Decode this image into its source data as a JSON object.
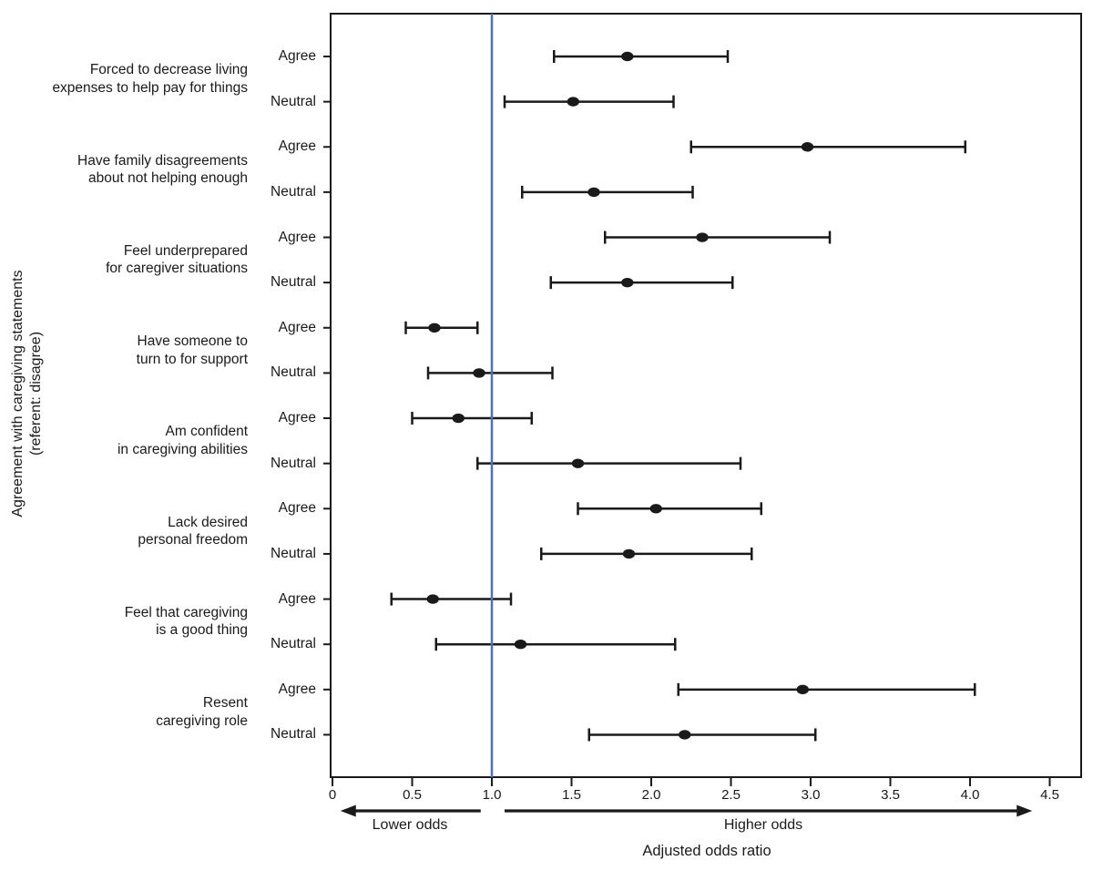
{
  "figure": {
    "y_axis_title_line1": "Agreement with caregiving statements",
    "y_axis_title_line2": "(referent: disagree)",
    "x_axis_title": "Adjusted odds ratio",
    "lower_odds_label": "Lower odds",
    "higher_odds_label": "Higher odds"
  },
  "chart_data": {
    "type": "scatter",
    "subtype": "forest-plot",
    "title": "",
    "xlabel": "Adjusted odds ratio",
    "ylabel": "Agreement with caregiving statements (referent: disagree)",
    "xlim": [
      0,
      4.7
    ],
    "x_ticks": [
      0,
      0.5,
      1.0,
      1.5,
      2.0,
      2.5,
      3.0,
      3.5,
      4.0,
      4.5
    ],
    "x_tick_labels": [
      "0",
      "0.5",
      "1.0",
      "1.5",
      "2.0",
      "2.5",
      "3.0",
      "3.5",
      "4.0",
      "4.5"
    ],
    "grid": false,
    "legend": "none",
    "reference_line_x": 1.0,
    "reference_line_color": "#4472C4",
    "marker_color": "#1a1a1a",
    "error_bar_color": "#1a1a1a",
    "annotations": {
      "lower_odds": "Lower odds",
      "higher_odds": "Higher odds",
      "lower_arrow_span": [
        0.05,
        0.93
      ],
      "higher_arrow_span": [
        1.08,
        4.39
      ]
    },
    "groups": [
      {
        "label_lines": [
          "Forced to decrease living",
          "expenses to help pay for things"
        ],
        "rows": [
          {
            "level": "Agree",
            "or": 1.85,
            "ci_low": 1.39,
            "ci_high": 2.48
          },
          {
            "level": "Neutral",
            "or": 1.51,
            "ci_low": 1.08,
            "ci_high": 2.14
          }
        ]
      },
      {
        "label_lines": [
          "Have family disagreements",
          "about not helping enough"
        ],
        "rows": [
          {
            "level": "Agree",
            "or": 2.98,
            "ci_low": 2.25,
            "ci_high": 3.97
          },
          {
            "level": "Neutral",
            "or": 1.64,
            "ci_low": 1.19,
            "ci_high": 2.26
          }
        ]
      },
      {
        "label_lines": [
          "Feel underprepared",
          "for caregiver situations"
        ],
        "rows": [
          {
            "level": "Agree",
            "or": 2.32,
            "ci_low": 1.71,
            "ci_high": 3.12
          },
          {
            "level": "Neutral",
            "or": 1.85,
            "ci_low": 1.37,
            "ci_high": 2.51
          }
        ]
      },
      {
        "label_lines": [
          "Have someone to",
          "turn to for support"
        ],
        "rows": [
          {
            "level": "Agree",
            "or": 0.64,
            "ci_low": 0.46,
            "ci_high": 0.91
          },
          {
            "level": "Neutral",
            "or": 0.92,
            "ci_low": 0.6,
            "ci_high": 1.38
          }
        ]
      },
      {
        "label_lines": [
          "Am confident",
          "in caregiving abilities"
        ],
        "rows": [
          {
            "level": "Agree",
            "or": 0.79,
            "ci_low": 0.5,
            "ci_high": 1.25
          },
          {
            "level": "Neutral",
            "or": 1.54,
            "ci_low": 0.91,
            "ci_high": 2.56
          }
        ]
      },
      {
        "label_lines": [
          "Lack desired",
          "personal freedom"
        ],
        "rows": [
          {
            "level": "Agree",
            "or": 2.03,
            "ci_low": 1.54,
            "ci_high": 2.69
          },
          {
            "level": "Neutral",
            "or": 1.86,
            "ci_low": 1.31,
            "ci_high": 2.63
          }
        ]
      },
      {
        "label_lines": [
          "Feel that caregiving",
          "is a good thing"
        ],
        "rows": [
          {
            "level": "Agree",
            "or": 0.63,
            "ci_low": 0.37,
            "ci_high": 1.12
          },
          {
            "level": "Neutral",
            "or": 1.18,
            "ci_low": 0.65,
            "ci_high": 2.15
          }
        ]
      },
      {
        "label_lines": [
          "Resent",
          "caregiving role"
        ],
        "rows": [
          {
            "level": "Agree",
            "or": 2.95,
            "ci_low": 2.17,
            "ci_high": 4.03
          },
          {
            "level": "Neutral",
            "or": 2.21,
            "ci_low": 1.61,
            "ci_high": 3.03
          }
        ]
      }
    ]
  }
}
